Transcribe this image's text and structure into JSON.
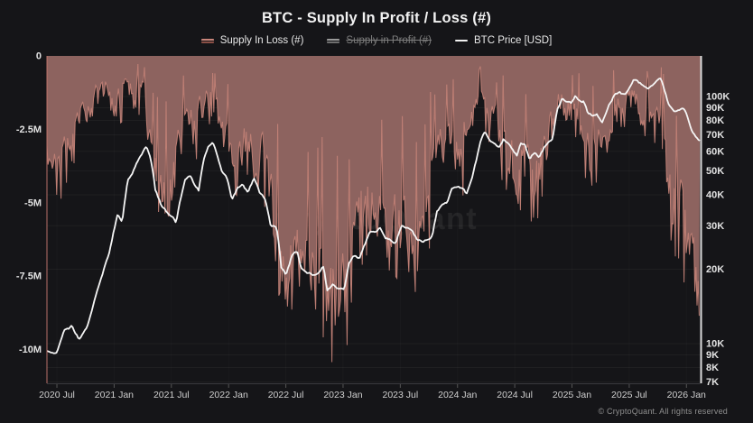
{
  "chart_data": {
    "type": "mixed",
    "title": "BTC - Supply In Profit / Loss (#)",
    "watermark": "CryptoQuant",
    "copyright": "© CryptoQuant. All rights reserved",
    "legend": [
      {
        "label": "Supply In Loss (#)",
        "slug": "supply-in-loss",
        "marker_colors": [
          "#c9857a",
          "#8a4f46"
        ],
        "disabled": false
      },
      {
        "label": "Supply in Profit (#)",
        "slug": "supply-in-profit",
        "marker_colors": [
          "#9a9a9a",
          "#6f6f6f"
        ],
        "disabled": true
      },
      {
        "label": "BTC Price [USD]",
        "slug": "btc-price",
        "marker_colors": [
          "#f2f2f2"
        ],
        "disabled": false
      }
    ],
    "colors": {
      "background": "#151518",
      "loss_fill": "#8d635f",
      "loss_line": "#c9857a",
      "price_line": "#f5f5f5",
      "left_axis_line": "#c87a70",
      "right_axis_line": "#dcdcdc",
      "grid_line": "rgba(255,255,255,0.045)"
    },
    "x_axis": {
      "range_fractional_years": [
        2020.413,
        2026.12
      ],
      "ticks": [
        {
          "t": 2020.5,
          "label": "2020 Jul"
        },
        {
          "t": 2021.0,
          "label": "2021 Jan"
        },
        {
          "t": 2021.5,
          "label": "2021 Jul"
        },
        {
          "t": 2022.0,
          "label": "2022 Jan"
        },
        {
          "t": 2022.5,
          "label": "2022 Jul"
        },
        {
          "t": 2023.0,
          "label": "2023 Jan"
        },
        {
          "t": 2023.5,
          "label": "2023 Jul"
        },
        {
          "t": 2024.0,
          "label": "2024 Jan"
        },
        {
          "t": 2024.5,
          "label": "2024 Jul"
        },
        {
          "t": 2025.0,
          "label": "2025 Jan"
        },
        {
          "t": 2025.5,
          "label": "2025 Jul"
        },
        {
          "t": 2026.0,
          "label": "2026 Jan"
        }
      ]
    },
    "y_left_axis": {
      "scale": "linear",
      "units": "coins (millions, negative = in loss)",
      "ticks": [
        {
          "v": 0,
          "label": "0"
        },
        {
          "v": -2.5,
          "label": "-2.5M"
        },
        {
          "v": -5,
          "label": "-5M"
        },
        {
          "v": -7.5,
          "label": "-7.5M"
        },
        {
          "v": -10,
          "label": "-10M"
        }
      ]
    },
    "y_right_axis": {
      "scale": "log",
      "units": "USD",
      "ticks": [
        {
          "v": 100000,
          "label": "100K"
        },
        {
          "v": 90000,
          "label": "90K"
        },
        {
          "v": 80000,
          "label": "80K"
        },
        {
          "v": 70000,
          "label": "70K"
        },
        {
          "v": 60000,
          "label": "60K"
        },
        {
          "v": 50000,
          "label": "50K"
        },
        {
          "v": 40000,
          "label": "40K"
        },
        {
          "v": 30000,
          "label": "30K"
        },
        {
          "v": 20000,
          "label": "20K"
        },
        {
          "v": 10000,
          "label": "10K"
        },
        {
          "v": 9000,
          "label": "9K"
        },
        {
          "v": 8000,
          "label": "8K"
        },
        {
          "v": 7000,
          "label": "7K"
        }
      ]
    },
    "series": [
      {
        "name": "Supply In Loss (#)",
        "type": "area",
        "axis": "left",
        "note": "Spiky daily series; keypoints give [fractional_year, typical_depth_M, max_spike_depth_M] (plotted negative).",
        "keypoints": [
          [
            2020.42,
            2.6,
            4.6
          ],
          [
            2020.52,
            2.9,
            5.1
          ],
          [
            2020.62,
            2.2,
            4.3
          ],
          [
            2020.72,
            1.3,
            3.0
          ],
          [
            2020.82,
            0.8,
            2.1
          ],
          [
            2020.92,
            0.45,
            1.3
          ],
          [
            2021.02,
            0.9,
            2.7
          ],
          [
            2021.1,
            0.6,
            2.0
          ],
          [
            2021.18,
            0.55,
            1.8
          ],
          [
            2021.26,
            0.7,
            2.3
          ],
          [
            2021.34,
            2.3,
            5.0
          ],
          [
            2021.42,
            3.0,
            5.8
          ],
          [
            2021.5,
            2.8,
            5.6
          ],
          [
            2021.58,
            1.6,
            3.6
          ],
          [
            2021.64,
            1.1,
            2.8
          ],
          [
            2021.72,
            1.5,
            3.7
          ],
          [
            2021.8,
            0.8,
            2.2
          ],
          [
            2021.88,
            1.1,
            2.9
          ],
          [
            2021.96,
            1.9,
            4.1
          ],
          [
            2022.04,
            2.5,
            5.0
          ],
          [
            2022.12,
            2.1,
            4.4
          ],
          [
            2022.2,
            1.8,
            4.0
          ],
          [
            2022.29,
            2.3,
            4.9
          ],
          [
            2022.37,
            3.6,
            6.6
          ],
          [
            2022.45,
            5.2,
            8.6
          ],
          [
            2022.53,
            5.6,
            9.1
          ],
          [
            2022.61,
            5.0,
            8.2
          ],
          [
            2022.7,
            5.5,
            8.9
          ],
          [
            2022.78,
            5.2,
            8.6
          ],
          [
            2022.87,
            6.6,
            10.6
          ],
          [
            2022.95,
            6.8,
            10.9
          ],
          [
            2023.03,
            6.0,
            10.0
          ],
          [
            2023.12,
            4.2,
            7.6
          ],
          [
            2023.2,
            3.6,
            7.0
          ],
          [
            2023.29,
            3.3,
            6.6
          ],
          [
            2023.37,
            3.9,
            7.1
          ],
          [
            2023.45,
            4.3,
            7.9
          ],
          [
            2023.53,
            4.1,
            7.6
          ],
          [
            2023.62,
            4.6,
            8.1
          ],
          [
            2023.7,
            4.3,
            7.8
          ],
          [
            2023.78,
            3.1,
            6.1
          ],
          [
            2023.87,
            1.9,
            4.1
          ],
          [
            2023.95,
            1.6,
            3.6
          ],
          [
            2024.03,
            2.1,
            5.4
          ],
          [
            2024.12,
            1.3,
            3.1
          ],
          [
            2024.2,
            0.7,
            2.0
          ],
          [
            2024.29,
            1.3,
            3.3
          ],
          [
            2024.37,
            1.6,
            4.3
          ],
          [
            2024.45,
            2.3,
            5.1
          ],
          [
            2024.53,
            2.6,
            5.4
          ],
          [
            2024.62,
            2.9,
            6.1
          ],
          [
            2024.7,
            2.6,
            5.9
          ],
          [
            2024.78,
            1.6,
            4.1
          ],
          [
            2024.87,
            0.7,
            1.9
          ],
          [
            2024.95,
            0.9,
            2.3
          ],
          [
            2025.03,
            1.1,
            2.9
          ],
          [
            2025.12,
            1.9,
            4.3
          ],
          [
            2025.2,
            2.1,
            4.6
          ],
          [
            2025.29,
            1.9,
            4.4
          ],
          [
            2025.37,
            0.9,
            2.3
          ],
          [
            2025.45,
            1.1,
            2.7
          ],
          [
            2025.53,
            0.6,
            1.6
          ],
          [
            2025.62,
            1.1,
            2.9
          ],
          [
            2025.7,
            1.3,
            3.1
          ],
          [
            2025.78,
            1.1,
            2.9
          ],
          [
            2025.85,
            3.1,
            6.6
          ],
          [
            2025.92,
            3.6,
            7.3
          ],
          [
            2026.0,
            4.2,
            8.1
          ],
          [
            2026.06,
            5.1,
            9.4
          ],
          [
            2026.12,
            5.6,
            9.9
          ]
        ]
      },
      {
        "name": "Supply in Profit (#)",
        "type": "line",
        "axis": "left",
        "disabled": true,
        "keypoints": []
      },
      {
        "name": "BTC Price [USD]",
        "type": "line",
        "axis": "right",
        "note": "Keypoints are [fractional_year, price_thousand_USD].",
        "keypoints": [
          [
            2020.42,
            9.4
          ],
          [
            2020.5,
            9.15
          ],
          [
            2020.56,
            11.3
          ],
          [
            2020.63,
            11.7
          ],
          [
            2020.7,
            10.4
          ],
          [
            2020.77,
            11.8
          ],
          [
            2020.84,
            15.5
          ],
          [
            2020.9,
            19.2
          ],
          [
            2020.96,
            23.5
          ],
          [
            2021.0,
            29.0
          ],
          [
            2021.03,
            33.0
          ],
          [
            2021.07,
            31.5
          ],
          [
            2021.12,
            46.0
          ],
          [
            2021.16,
            48.5
          ],
          [
            2021.2,
            54.0
          ],
          [
            2021.24,
            58.5
          ],
          [
            2021.28,
            62.5
          ],
          [
            2021.32,
            56.0
          ],
          [
            2021.36,
            42.0
          ],
          [
            2021.41,
            36.5
          ],
          [
            2021.46,
            34.0
          ],
          [
            2021.51,
            32.5
          ],
          [
            2021.54,
            30.5
          ],
          [
            2021.58,
            38.0
          ],
          [
            2021.62,
            46.5
          ],
          [
            2021.66,
            48.0
          ],
          [
            2021.7,
            44.0
          ],
          [
            2021.74,
            41.5
          ],
          [
            2021.78,
            55.0
          ],
          [
            2021.82,
            62.0
          ],
          [
            2021.86,
            65.5
          ],
          [
            2021.9,
            57.0
          ],
          [
            2021.94,
            49.0
          ],
          [
            2021.98,
            47.0
          ],
          [
            2022.03,
            38.0
          ],
          [
            2022.08,
            42.5
          ],
          [
            2022.12,
            44.0
          ],
          [
            2022.17,
            40.5
          ],
          [
            2022.22,
            46.5
          ],
          [
            2022.27,
            41.0
          ],
          [
            2022.32,
            38.5
          ],
          [
            2022.37,
            30.0
          ],
          [
            2022.42,
            29.5
          ],
          [
            2022.46,
            20.5
          ],
          [
            2022.5,
            19.2
          ],
          [
            2022.55,
            22.5
          ],
          [
            2022.6,
            23.5
          ],
          [
            2022.64,
            20.0
          ],
          [
            2022.69,
            19.5
          ],
          [
            2022.74,
            19.0
          ],
          [
            2022.79,
            19.5
          ],
          [
            2022.83,
            20.5
          ],
          [
            2022.86,
            16.2
          ],
          [
            2022.91,
            17.0
          ],
          [
            2022.96,
            16.8
          ],
          [
            2023.01,
            16.6
          ],
          [
            2023.05,
            21.0
          ],
          [
            2023.09,
            23.0
          ],
          [
            2023.14,
            22.0
          ],
          [
            2023.18,
            24.5
          ],
          [
            2023.23,
            28.0
          ],
          [
            2023.28,
            28.5
          ],
          [
            2023.32,
            29.5
          ],
          [
            2023.37,
            27.0
          ],
          [
            2023.42,
            26.5
          ],
          [
            2023.46,
            25.5
          ],
          [
            2023.51,
            30.5
          ],
          [
            2023.56,
            29.5
          ],
          [
            2023.6,
            29.0
          ],
          [
            2023.65,
            26.0
          ],
          [
            2023.7,
            25.8
          ],
          [
            2023.74,
            26.5
          ],
          [
            2023.78,
            27.5
          ],
          [
            2023.82,
            34.0
          ],
          [
            2023.86,
            36.5
          ],
          [
            2023.91,
            37.5
          ],
          [
            2023.95,
            42.0
          ],
          [
            2024.0,
            43.5
          ],
          [
            2024.04,
            42.0
          ],
          [
            2024.08,
            40.0
          ],
          [
            2024.13,
            48.0
          ],
          [
            2024.17,
            57.0
          ],
          [
            2024.21,
            68.0
          ],
          [
            2024.24,
            71.5
          ],
          [
            2024.28,
            66.0
          ],
          [
            2024.32,
            63.5
          ],
          [
            2024.36,
            61.5
          ],
          [
            2024.4,
            67.5
          ],
          [
            2024.44,
            65.0
          ],
          [
            2024.48,
            60.0
          ],
          [
            2024.52,
            57.0
          ],
          [
            2024.55,
            64.5
          ],
          [
            2024.59,
            64.0
          ],
          [
            2024.63,
            55.5
          ],
          [
            2024.67,
            59.5
          ],
          [
            2024.71,
            57.5
          ],
          [
            2024.75,
            62.0
          ],
          [
            2024.79,
            66.5
          ],
          [
            2024.83,
            69.0
          ],
          [
            2024.87,
            88.0
          ],
          [
            2024.91,
            97.5
          ],
          [
            2024.95,
            95.5
          ],
          [
            2024.99,
            94.0
          ],
          [
            2025.03,
            102.0
          ],
          [
            2025.07,
            97.0
          ],
          [
            2025.1,
            96.5
          ],
          [
            2025.14,
            85.0
          ],
          [
            2025.18,
            83.5
          ],
          [
            2025.22,
            85.5
          ],
          [
            2025.26,
            78.5
          ],
          [
            2025.3,
            85.0
          ],
          [
            2025.34,
            94.5
          ],
          [
            2025.38,
            103.5
          ],
          [
            2025.42,
            105.0
          ],
          [
            2025.46,
            101.0
          ],
          [
            2025.5,
            108.5
          ],
          [
            2025.54,
            117.5
          ],
          [
            2025.58,
            113.5
          ],
          [
            2025.62,
            112.0
          ],
          [
            2025.66,
            109.0
          ],
          [
            2025.7,
            112.5
          ],
          [
            2025.74,
            116.0
          ],
          [
            2025.77,
            120.5
          ],
          [
            2025.8,
            110.0
          ],
          [
            2025.84,
            95.0
          ],
          [
            2025.87,
            90.0
          ],
          [
            2025.91,
            86.5
          ],
          [
            2025.95,
            89.5
          ],
          [
            2025.99,
            88.0
          ],
          [
            2026.03,
            78.0
          ],
          [
            2026.06,
            71.0
          ],
          [
            2026.09,
            67.5
          ],
          [
            2026.12,
            65.5
          ]
        ]
      }
    ]
  }
}
